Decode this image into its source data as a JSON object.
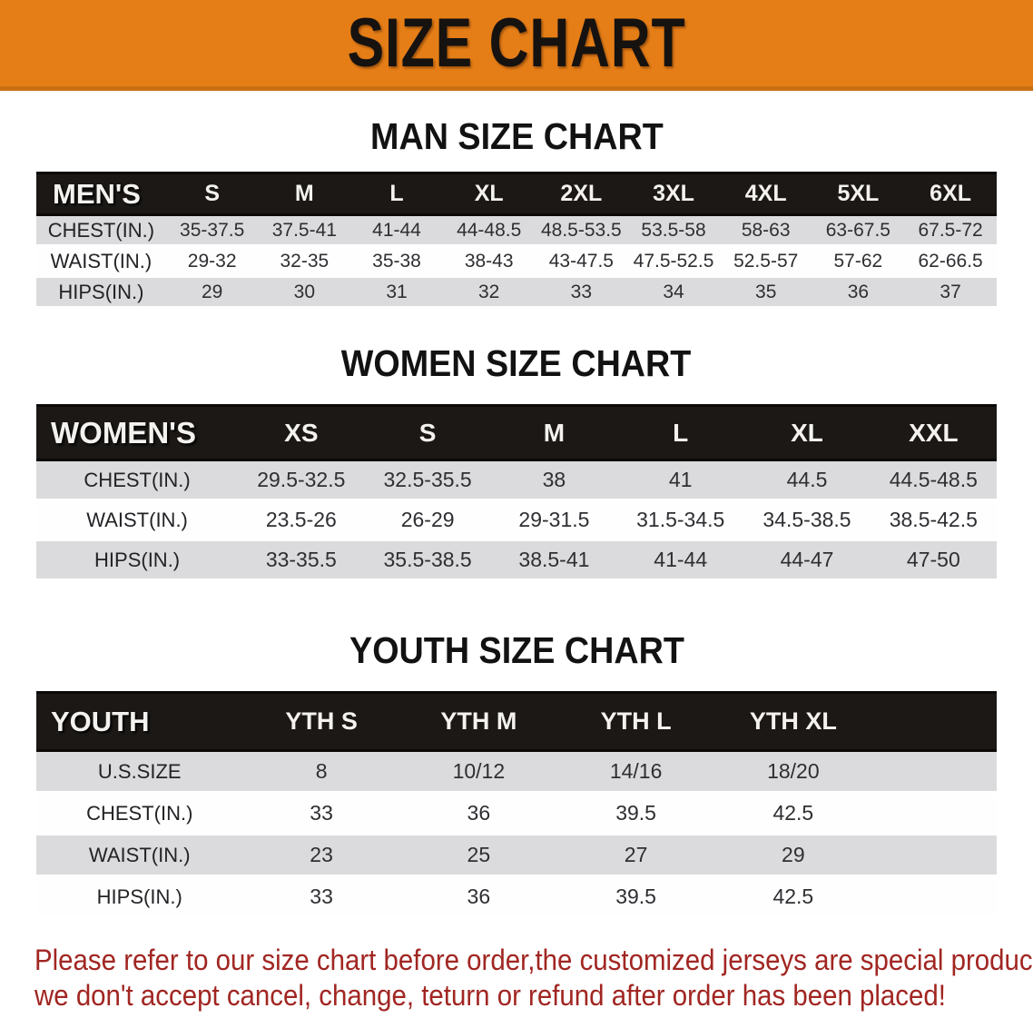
{
  "banner": {
    "title": "SIZE CHART"
  },
  "sections": [
    {
      "heading": "MAN SIZE CHART",
      "table": {
        "label": "MEN'S",
        "sizes": [
          "S",
          "M",
          "L",
          "XL",
          "2XL",
          "3XL",
          "4XL",
          "5XL",
          "6XL"
        ],
        "rows": [
          {
            "label": "CHEST(IN.)",
            "values": [
              "35-37.5",
              "37.5-41",
              "41-44",
              "44-48.5",
              "48.5-53.5",
              "53.5-58",
              "58-63",
              "63-67.5",
              "67.5-72"
            ]
          },
          {
            "label": "WAIST(IN.)",
            "values": [
              "29-32",
              "32-35",
              "35-38",
              "38-43",
              "43-47.5",
              "47.5-52.5",
              "52.5-57",
              "57-62",
              "62-66.5"
            ]
          },
          {
            "label": "HIPS(IN.)",
            "values": [
              "29",
              "30",
              "31",
              "32",
              "33",
              "34",
              "35",
              "36",
              "37"
            ]
          }
        ]
      }
    },
    {
      "heading": "WOMEN SIZE CHART",
      "table": {
        "label": "WOMEN'S",
        "sizes": [
          "XS",
          "S",
          "M",
          "L",
          "XL",
          "XXL"
        ],
        "rows": [
          {
            "label": "CHEST(IN.)",
            "values": [
              "29.5-32.5",
              "32.5-35.5",
              "38",
              "41",
              "44.5",
              "44.5-48.5"
            ]
          },
          {
            "label": "WAIST(IN.)",
            "values": [
              "23.5-26",
              "26-29",
              "29-31.5",
              "31.5-34.5",
              "34.5-38.5",
              "38.5-42.5"
            ]
          },
          {
            "label": "HIPS(IN.)",
            "values": [
              "33-35.5",
              "35.5-38.5",
              "38.5-41",
              "41-44",
              "44-47",
              "47-50"
            ]
          }
        ]
      }
    },
    {
      "heading": "YOUTH SIZE CHART",
      "table": {
        "label": "YOUTH",
        "sizes": [
          "YTH S",
          "YTH M",
          "YTH L",
          "YTH XL"
        ],
        "rows": [
          {
            "label": "U.S.SIZE",
            "values": [
              "8",
              "10/12",
              "14/16",
              "18/20"
            ]
          },
          {
            "label": "CHEST(IN.)",
            "values": [
              "33",
              "36",
              "39.5",
              "42.5"
            ]
          },
          {
            "label": "WAIST(IN.)",
            "values": [
              "23",
              "25",
              "27",
              "29"
            ]
          },
          {
            "label": "HIPS(IN.)",
            "values": [
              "33",
              "36",
              "39.5",
              "42.5"
            ]
          }
        ]
      }
    }
  ],
  "footer": {
    "line1": "Please refer to our size chart before order,the customized jerseys are special products,",
    "line2": "we don't accept cancel, change, teturn or refund after order has been placed!"
  },
  "colors": {
    "banner_bg": "#E67E17",
    "banner_edge": "#C96F12",
    "header_bar": "#1B1816",
    "row_shaded": "#DBDBDD",
    "row_plain": "#FEFEFE",
    "cell_text": "#2F2F33",
    "footer_text": "#A12622"
  }
}
